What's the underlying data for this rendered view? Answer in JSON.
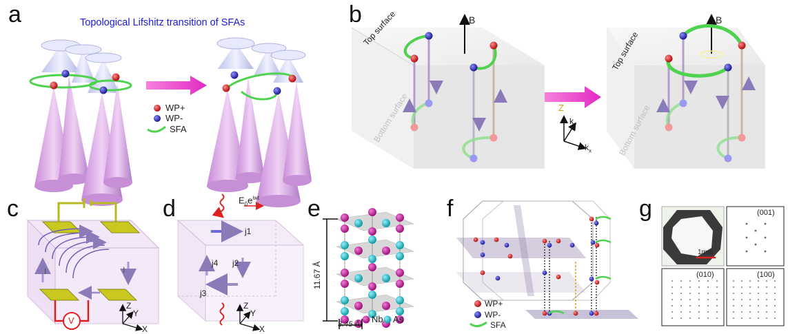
{
  "panels": {
    "a": {
      "letter": "a",
      "title": "Topological Lifshitz transition of SFAs",
      "legend": [
        "WP+",
        "WP-",
        "SFA"
      ]
    },
    "b": {
      "letter": "b",
      "field": "B",
      "top_surface": "Top surface",
      "bottom_surface": "Bottom surface",
      "axis_z": "Z",
      "axis_ky": "k",
      "axis_ky_sub": "y",
      "axis_kx": "k",
      "axis_kx_sub": "x"
    },
    "c": {
      "letter": "c",
      "current_label": "I",
      "voltmeter": "V",
      "axes": [
        "Z",
        "Y",
        "X"
      ]
    },
    "d": {
      "letter": "d",
      "field": "E",
      "field_sub": "0",
      "field_sup": "e",
      "field_exp": "iwt",
      "currents": [
        "j1",
        "j2",
        "j3",
        "j4"
      ],
      "axes": [
        "Z",
        "Y",
        "X"
      ]
    },
    "e": {
      "letter": "e",
      "c_length": "11.67 Å",
      "a_length": "3.45 Å",
      "legend": [
        "Nb",
        "As"
      ]
    },
    "f": {
      "letter": "f",
      "legend": [
        "WP+",
        "WP-",
        "SFA"
      ]
    },
    "g": {
      "letter": "g",
      "scale": "1mm",
      "labels": [
        "(001)",
        "(010)",
        "(100)"
      ]
    },
    "colors": {
      "wp_plus": "#d42020",
      "wp_minus": "#2a2ab8",
      "sfa": "#4fd24f",
      "arrow": "#ee44cc",
      "cone": "#d6a4e0",
      "nb": "#c2209b",
      "as": "#22b8c6"
    }
  }
}
